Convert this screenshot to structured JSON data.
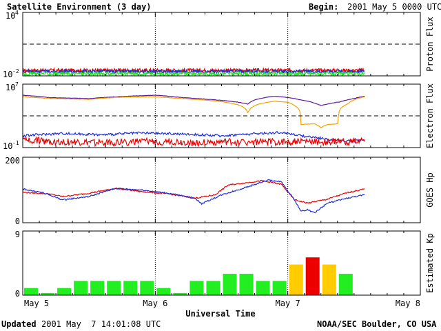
{
  "header": {
    "title": "Satellite Environment (3 day)",
    "begin_label": "Begin:",
    "begin_value": "2001 May 5 0000 UTC"
  },
  "footer": {
    "updated_label": "Updated",
    "updated_value": "2001 May  7 14:01:08 UTC",
    "credit": "NOAA/SEC Boulder, CO USA"
  },
  "colors": {
    "red": "#ee0000",
    "blue": "#1b2ddb",
    "green": "#22e022",
    "purple": "#5a1a9a",
    "orange": "#f5a000",
    "kp_green": "#22ee22",
    "kp_yellow": "#ffcc00",
    "kp_red": "#ee0000"
  },
  "chart_data": [
    {
      "type": "line",
      "name": "proton",
      "ylabel": "Proton Flux",
      "y_scale": "log",
      "ylim": [
        0.01,
        10000
      ],
      "y_ticks": [
        {
          "base": "10",
          "exp": "4"
        },
        {
          "base": "10",
          "exp": "-2"
        }
      ],
      "threshold": 10,
      "x_range_days": [
        0,
        3
      ],
      "data_end_day": 2.58,
      "series": [
        {
          "color": "red",
          "level": 0.033,
          "noise": 0.35
        },
        {
          "color": "blue",
          "level": 0.026,
          "noise": 0.3
        },
        {
          "color": "green",
          "level": 0.016,
          "noise": 0.35
        }
      ]
    },
    {
      "type": "line",
      "name": "electron",
      "ylabel": "Electron Flux",
      "y_scale": "log",
      "ylim": [
        0.1,
        10000000
      ],
      "y_ticks": [
        {
          "base": "10",
          "exp": "7"
        },
        {
          "base": "10",
          "exp": "-1"
        }
      ],
      "threshold": 1000,
      "x_range_days": [
        0,
        3
      ],
      "data_end_day": 2.58,
      "series": [
        {
          "color": "purple",
          "x": [
            0,
            0.2,
            0.5,
            0.8,
            1.0,
            1.2,
            1.4,
            1.7,
            1.9,
            2.0,
            2.1,
            2.2,
            2.25,
            2.3,
            2.4,
            2.5,
            2.58
          ],
          "y": [
            400000,
            200000,
            150000,
            300000,
            400000,
            200000,
            120000,
            30000,
            300000,
            200000,
            100000,
            40000,
            20000,
            30000,
            60000,
            150000,
            300000
          ]
        },
        {
          "color": "orange",
          "x": [
            0,
            0.2,
            0.5,
            0.8,
            1.0,
            1.2,
            1.4,
            1.7,
            1.9,
            2.0,
            2.05,
            2.1,
            2.2,
            2.25,
            2.3,
            2.38,
            2.45,
            2.5,
            2.58
          ],
          "y": [
            250000,
            150000,
            120000,
            250000,
            250000,
            150000,
            90000,
            2000,
            70000,
            50000,
            20000,
            80,
            100,
            30,
            80,
            100,
            30000,
            100000,
            250000
          ]
        },
        {
          "color": "blue",
          "x": [
            0,
            0.3,
            0.6,
            0.9,
            1.2,
            1.5,
            1.8,
            1.95,
            2.1,
            2.3,
            2.5,
            2.58
          ],
          "y": [
            3,
            6,
            4,
            7,
            5,
            3,
            6,
            8,
            3,
            1,
            0.6,
            1
          ]
        },
        {
          "color": "red",
          "x": [
            0,
            0.2,
            0.5,
            0.8,
            1.0,
            1.3,
            1.6,
            1.9,
            2.1,
            2.3,
            2.58
          ],
          "y": [
            1,
            0.6,
            0.4,
            0.5,
            0.6,
            0.4,
            0.5,
            0.5,
            0.6,
            0.5,
            0.6
          ]
        }
      ]
    },
    {
      "type": "line",
      "name": "goes_hp",
      "ylabel": "GOES Hp",
      "ylim": [
        0,
        200
      ],
      "y_ticks": [
        200,
        0
      ],
      "x_range_days": [
        0,
        3
      ],
      "series": [
        {
          "color": "red",
          "x": [
            0,
            0.2,
            0.3,
            0.5,
            0.7,
            0.9,
            1.1,
            1.3,
            1.45,
            1.55,
            1.8,
            1.95,
            2.05,
            2.15,
            2.3,
            2.45,
            2.58
          ],
          "y": [
            93,
            88,
            80,
            90,
            105,
            95,
            88,
            75,
            85,
            115,
            128,
            118,
            70,
            60,
            72,
            92,
            103
          ]
        },
        {
          "color": "blue",
          "x": [
            0,
            0.15,
            0.3,
            0.5,
            0.7,
            0.9,
            1.1,
            1.3,
            1.35,
            1.5,
            1.7,
            1.85,
            1.95,
            2.05,
            2.1,
            2.15,
            2.2,
            2.3,
            2.45,
            2.58
          ],
          "y": [
            103,
            92,
            70,
            80,
            105,
            100,
            90,
            75,
            58,
            85,
            110,
            130,
            125,
            70,
            35,
            40,
            30,
            60,
            75,
            85
          ]
        }
      ]
    },
    {
      "type": "bar",
      "name": "kp",
      "ylabel": "Estimated Kp",
      "ylim": [
        0,
        9
      ],
      "y_ticks": [
        9,
        0
      ],
      "bin_hours": 3,
      "values": [
        1,
        0.3,
        1,
        2,
        2,
        2,
        2,
        2,
        1,
        0.3,
        2,
        2,
        3,
        3,
        2,
        2,
        4.3,
        5.3,
        4.3,
        3
      ],
      "colors": [
        "kp_green",
        "kp_green",
        "kp_green",
        "kp_green",
        "kp_green",
        "kp_green",
        "kp_green",
        "kp_green",
        "kp_green",
        "kp_green",
        "kp_green",
        "kp_green",
        "kp_green",
        "kp_green",
        "kp_green",
        "kp_green",
        "kp_yellow",
        "kp_red",
        "kp_yellow",
        "kp_green"
      ]
    }
  ],
  "x_axis": {
    "label": "Universal Time",
    "ticks": [
      "May 5",
      "May 6",
      "May 7",
      "May 8"
    ]
  }
}
